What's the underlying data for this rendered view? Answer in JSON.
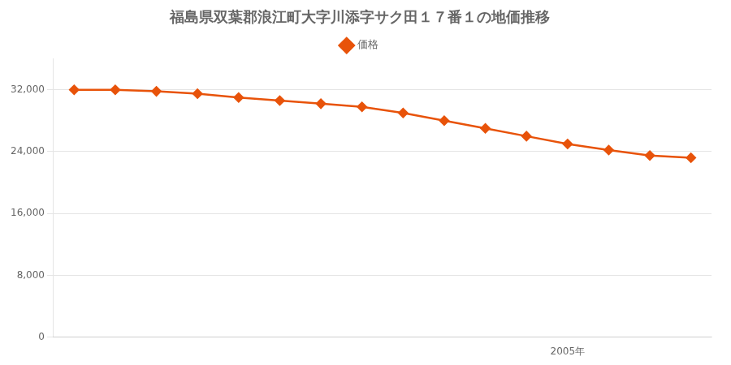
{
  "chart_data": {
    "type": "line",
    "title": "福島県双葉郡浪江町大字川添字サク田１７番１の地価推移",
    "x": [
      1993,
      1994,
      1995,
      1996,
      1997,
      1998,
      1999,
      2000,
      2001,
      2002,
      2003,
      2004,
      2005,
      2006,
      2007,
      2008
    ],
    "series": [
      {
        "name": "価格",
        "color": "#E8530A",
        "marker": "diamond",
        "values": [
          32000,
          32000,
          31800,
          31500,
          31000,
          30600,
          30200,
          29800,
          29000,
          28000,
          27000,
          26000,
          25000,
          24200,
          23500,
          23200
        ]
      }
    ],
    "xlim": [
      1992.5,
      2008.5
    ],
    "xticks": [
      {
        "value": 2005,
        "label": "2005年"
      }
    ],
    "ylim": [
      0,
      36000
    ],
    "yticks": [
      0,
      {
        "value": 8000,
        "label": "8,000"
      },
      {
        "value": 16000,
        "label": "16,000"
      },
      {
        "value": 24000,
        "label": "24,000"
      },
      {
        "value": 32000,
        "label": "32,000"
      }
    ],
    "grid": "y",
    "legend": "top"
  }
}
